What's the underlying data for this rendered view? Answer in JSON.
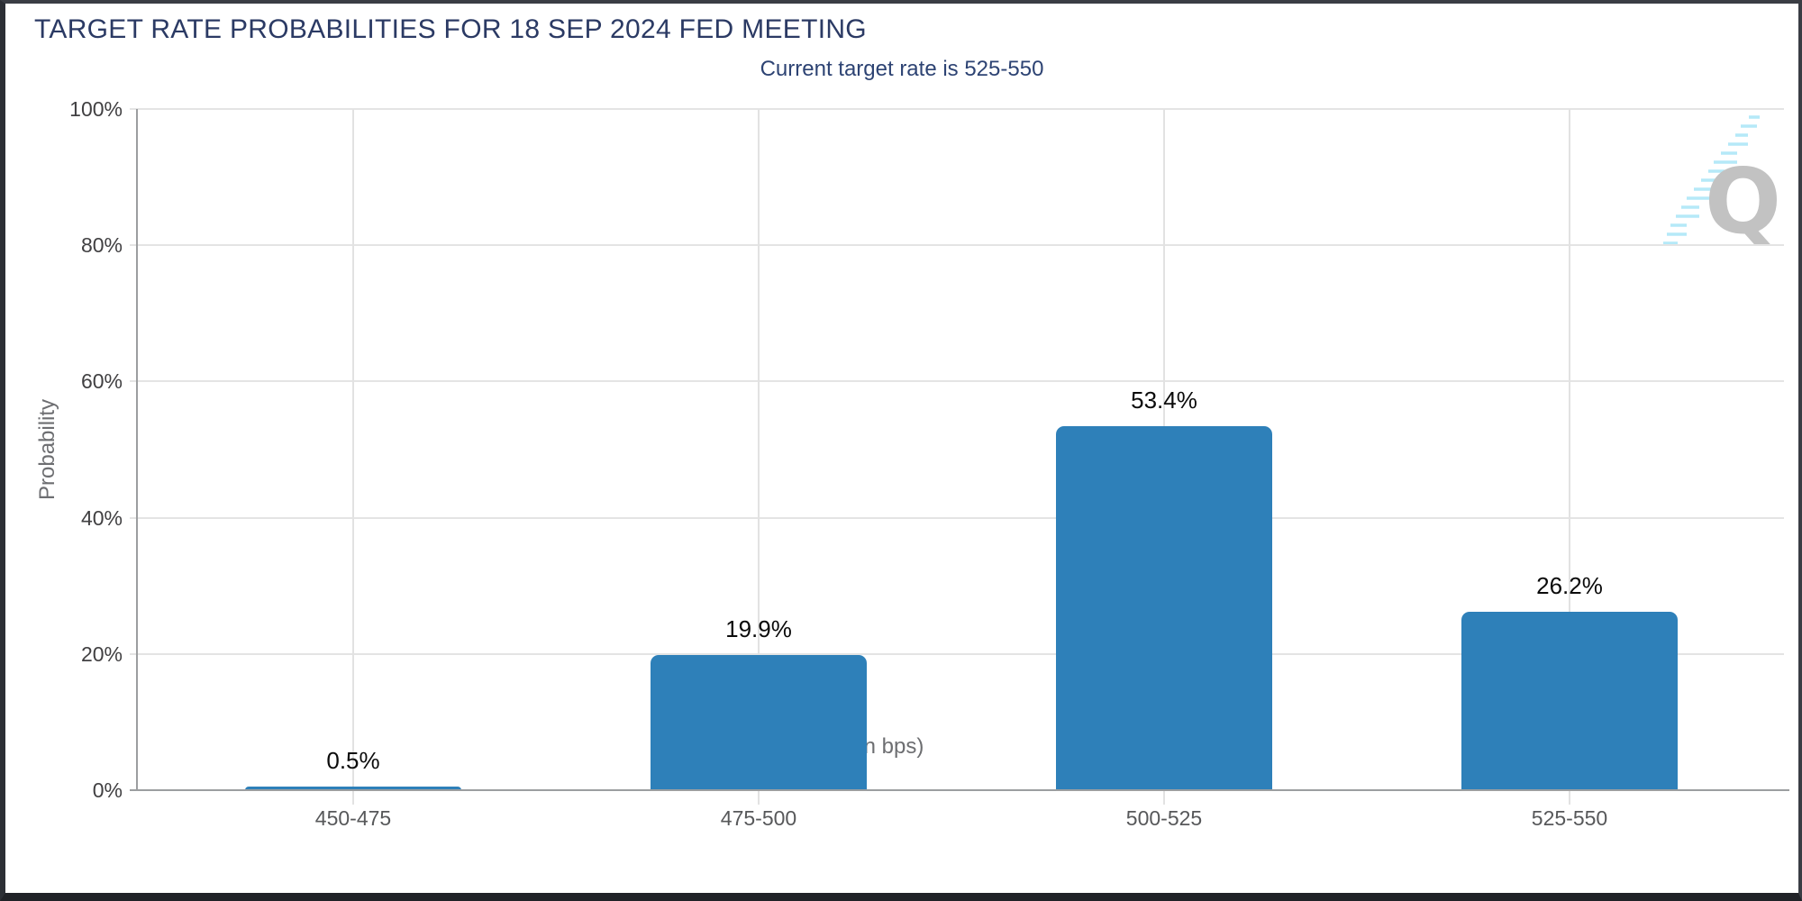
{
  "chart_data": {
    "type": "bar",
    "title": "TARGET RATE PROBABILITIES FOR 18 SEP 2024 FED MEETING",
    "subtitle": "Current target rate is 525-550",
    "categories": [
      "450-475",
      "475-500",
      "500-525",
      "525-550"
    ],
    "values": [
      0.5,
      19.9,
      53.4,
      26.2
    ],
    "data_labels": [
      "0.5%",
      "19.9%",
      "53.4%",
      "26.2%"
    ],
    "xlabel": "Target Rate (in bps)",
    "ylabel": "Probability",
    "ylim": [
      0,
      100
    ],
    "yticks": [
      0,
      20,
      40,
      60,
      80,
      100
    ],
    "ytick_labels": [
      "0%",
      "20%",
      "40%",
      "60%",
      "80%",
      "100%"
    ],
    "legend": "none",
    "grid": true,
    "bar_color": "#2E80B9"
  },
  "watermark": {
    "icon": "quikstrike-q-logo",
    "letter": "Q"
  },
  "colors": {
    "title_text": "#2B3A64",
    "subtitle_text": "#2D4373",
    "bar": "#2E80B9",
    "axis_line": "#9C9EA0",
    "gridline": "#E4E4E4",
    "ytick_text": "#414042",
    "xtick_text": "#57585A",
    "axis_title_text": "#6D6E71",
    "data_label_text": "#0B0B0B",
    "page_border": "#2C2F35",
    "watermark_letter": "#C2C2C2",
    "watermark_swoosh": "#B5E9F8"
  }
}
